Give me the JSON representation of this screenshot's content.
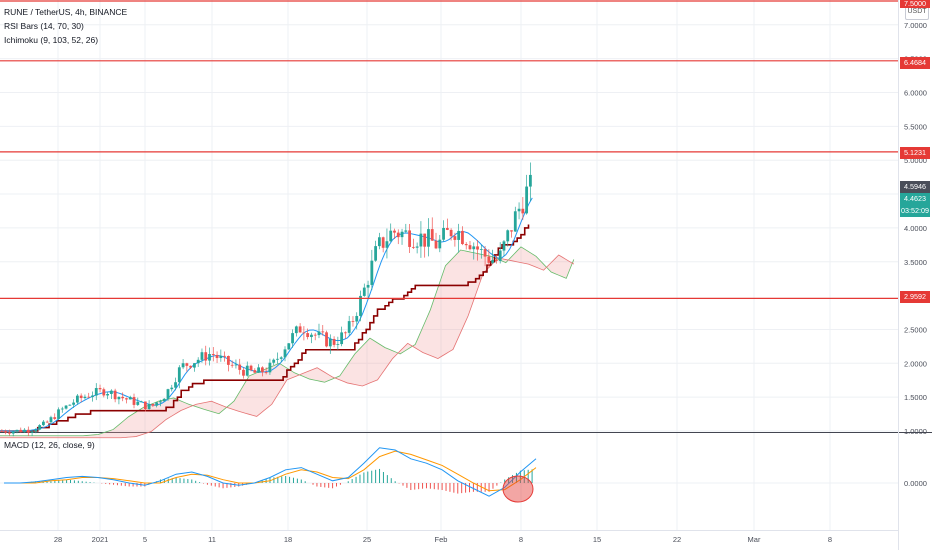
{
  "legend": {
    "title": "RUNE / TetherUS, 4h, BINANCE",
    "rsi_bars": "RSI Bars (14, 70, 30)",
    "ichimoku": "Ichimoku (9, 103, 52, 26)",
    "macd": "MACD (12, 26, close, 9)"
  },
  "currency_button": "USDT",
  "price_tags": {
    "top": "7.5000",
    "r1": "6.4684",
    "r2": "5.1231",
    "last_dark": "4.5946",
    "last_green": "4.4623",
    "countdown": "03:52:09",
    "support": "2.9592"
  },
  "colors": {
    "up": "#26a69a",
    "down": "#ef5350",
    "kijun": "#8b0000",
    "tenkan": "#2196f3",
    "cloud_red": "#ef9a9a",
    "cloud_green": "#a5d6a7",
    "level_line": "#e53935",
    "macd_line": "#2196f3",
    "signal_line": "#ff9800"
  },
  "chart_data": [
    {
      "type": "line",
      "panel": "price",
      "yticks": [
        "7.0000",
        "6.5000",
        "6.0000",
        "5.5000",
        "5.0000",
        "4.5000",
        "4.0000",
        "3.5000",
        "2.5000",
        "2.0000",
        "1.5000",
        "1.0000"
      ],
      "ytick_values": [
        7.0,
        6.5,
        6.0,
        5.5,
        5.0,
        4.5,
        4.0,
        3.5,
        2.5,
        2.0,
        1.5,
        1.0
      ],
      "xticks": [
        "28",
        "2021",
        "5",
        "11",
        "18",
        "25",
        "Feb",
        "8",
        "15",
        "22",
        "Mar",
        "8"
      ],
      "ylim": [
        0.95,
        7.6
      ],
      "levels": [
        7.5,
        6.4684,
        5.1231,
        2.9592
      ],
      "series": [
        {
          "x_days": [
            0,
            2,
            4,
            6,
            8,
            10,
            12,
            14,
            16,
            18,
            20,
            22,
            24,
            26,
            28,
            30,
            32,
            34,
            36,
            38,
            40,
            42,
            44,
            46,
            48,
            50,
            52,
            54,
            56,
            58,
            60,
            62,
            64,
            66,
            68,
            70
          ],
          "values": [
            1.0,
            1.0,
            1.02,
            1.1,
            1.3,
            1.45,
            1.55,
            1.6,
            1.5,
            1.42,
            1.35,
            1.55,
            1.95,
            2.05,
            2.15,
            2.0,
            1.9,
            1.85,
            1.95,
            2.3,
            2.55,
            2.4,
            2.3,
            2.45,
            3.0,
            3.7,
            3.95,
            3.9,
            3.85,
            3.75,
            4.0,
            3.85,
            3.6,
            3.5,
            4.1,
            4.59
          ]
        }
      ]
    },
    {
      "type": "line",
      "panel": "macd",
      "yticks": [
        "0.0000"
      ],
      "series": [
        {
          "values": [
            0.0,
            0.0,
            0.01,
            0.03,
            0.05,
            0.06,
            0.05,
            0.03,
            0.0,
            -0.02,
            0.02,
            0.08,
            0.1,
            0.06,
            0.0,
            -0.02,
            0.0,
            0.05,
            0.12,
            0.14,
            0.08,
            0.02,
            0.05,
            0.18,
            0.32,
            0.3,
            0.22,
            0.18,
            0.12,
            0.02,
            -0.05,
            -0.12,
            -0.04,
            0.1,
            0.22
          ]
        },
        {
          "values": [
            0.0,
            0.0,
            0.0,
            0.02,
            0.03,
            0.05,
            0.05,
            0.04,
            0.02,
            0.0,
            0.0,
            0.05,
            0.08,
            0.07,
            0.03,
            0.0,
            0.0,
            0.02,
            0.08,
            0.12,
            0.1,
            0.05,
            0.04,
            0.12,
            0.24,
            0.29,
            0.26,
            0.21,
            0.16,
            0.08,
            0.0,
            -0.07,
            -0.06,
            0.03,
            0.14
          ]
        }
      ]
    }
  ]
}
